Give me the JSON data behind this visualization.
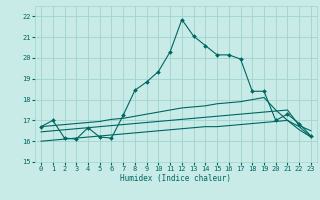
{
  "xlabel": "Humidex (Indice chaleur)",
  "bg_color": "#c8ebe8",
  "grid_color": "#a0d4d0",
  "line_color": "#006660",
  "xlim": [
    -0.5,
    23.5
  ],
  "ylim": [
    15.0,
    22.5
  ],
  "yticks": [
    15,
    16,
    17,
    18,
    19,
    20,
    21,
    22
  ],
  "xticks": [
    0,
    1,
    2,
    3,
    4,
    5,
    6,
    7,
    8,
    9,
    10,
    11,
    12,
    13,
    14,
    15,
    16,
    17,
    18,
    19,
    20,
    21,
    22,
    23
  ],
  "line_main_x": [
    0,
    1,
    2,
    3,
    4,
    5,
    6,
    7,
    8,
    9,
    10,
    11,
    12,
    13,
    14,
    15,
    16,
    17,
    18,
    19,
    20,
    21,
    22,
    23
  ],
  "line_main_y": [
    16.7,
    17.0,
    16.15,
    16.1,
    16.65,
    16.2,
    16.15,
    17.25,
    18.45,
    18.85,
    19.35,
    20.3,
    21.85,
    21.05,
    20.6,
    20.15,
    20.15,
    19.95,
    18.4,
    18.4,
    17.0,
    17.3,
    16.85,
    16.25
  ],
  "line_upper_x": [
    0,
    1,
    2,
    3,
    4,
    5,
    6,
    7,
    8,
    9,
    10,
    11,
    12,
    13,
    14,
    15,
    16,
    17,
    18,
    19,
    20,
    21,
    22,
    23
  ],
  "line_upper_y": [
    16.7,
    16.75,
    16.8,
    16.85,
    16.9,
    16.95,
    17.05,
    17.1,
    17.2,
    17.3,
    17.4,
    17.5,
    17.6,
    17.65,
    17.7,
    17.8,
    17.85,
    17.9,
    18.0,
    18.1,
    17.5,
    17.0,
    16.7,
    16.2
  ],
  "line_mid_x": [
    0,
    1,
    2,
    3,
    4,
    5,
    6,
    7,
    8,
    9,
    10,
    11,
    12,
    13,
    14,
    15,
    16,
    17,
    18,
    19,
    20,
    21,
    22,
    23
  ],
  "line_mid_y": [
    16.45,
    16.5,
    16.55,
    16.6,
    16.65,
    16.7,
    16.75,
    16.8,
    16.85,
    16.9,
    16.95,
    17.0,
    17.05,
    17.1,
    17.15,
    17.2,
    17.25,
    17.3,
    17.35,
    17.4,
    17.45,
    17.5,
    16.75,
    16.5
  ],
  "line_lower_x": [
    0,
    1,
    2,
    3,
    4,
    5,
    6,
    7,
    8,
    9,
    10,
    11,
    12,
    13,
    14,
    15,
    16,
    17,
    18,
    19,
    20,
    21,
    22,
    23
  ],
  "line_lower_y": [
    16.0,
    16.05,
    16.1,
    16.15,
    16.2,
    16.25,
    16.3,
    16.35,
    16.4,
    16.45,
    16.5,
    16.55,
    16.6,
    16.65,
    16.7,
    16.7,
    16.75,
    16.8,
    16.85,
    16.9,
    16.95,
    17.0,
    16.55,
    16.2
  ]
}
